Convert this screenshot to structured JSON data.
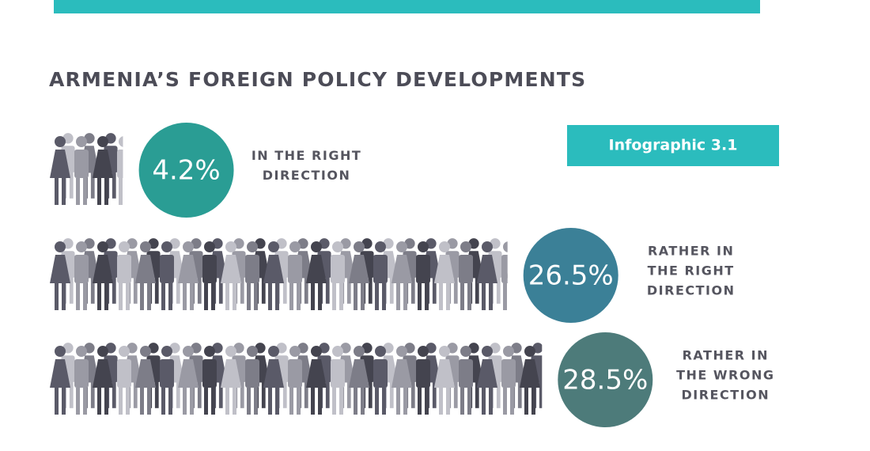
{
  "chart_data": {
    "type": "pictogram",
    "title": "ARMENIA’S FOREIGN POLICY DEVELOPMENTS",
    "badge": "Infographic 3.1",
    "categories": [
      "IN THE RIGHT DIRECTION",
      "RATHER IN THE RIGHT DIRECTION",
      "RATHER IN THE WRONG DIRECTION"
    ],
    "values": [
      4.2,
      26.5,
      28.5
    ],
    "value_labels": [
      "4.2%",
      "26.5%",
      "28.5%"
    ],
    "colors": [
      "#2a9d94",
      "#3b8097",
      "#4d7b7a"
    ]
  }
}
